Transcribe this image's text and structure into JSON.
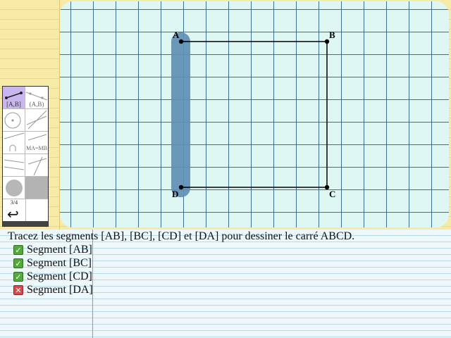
{
  "instruction": "Tracez les segments [AB], [BC], [CD] et [DA] pour dessiner le carré ABCD.",
  "points": {
    "A": "A",
    "B": "B",
    "C": "C",
    "D": "D"
  },
  "tools": {
    "segment_label": "[A,B]",
    "line_label": "(A,B)",
    "midpoint_label": "MA=MB",
    "page_indicator": "3/4",
    "undo_glyph": "↩"
  },
  "tasks": [
    {
      "label": "Segment [AB]",
      "status": "done"
    },
    {
      "label": "Segment [BC]",
      "status": "done"
    },
    {
      "label": "Segment [CD]",
      "status": "done"
    },
    {
      "label": "Segment [DA]",
      "status": "todo"
    }
  ],
  "colors": {
    "grid_line": "#3d6f93",
    "canvas_bg": "#dff7f3",
    "highlight": "#5e8fb5",
    "selected_tool": "#c9b6f0",
    "done": "#55a83a",
    "todo": "#d64b4b"
  },
  "icons": {
    "done": "check-icon",
    "todo": "cross-icon"
  }
}
